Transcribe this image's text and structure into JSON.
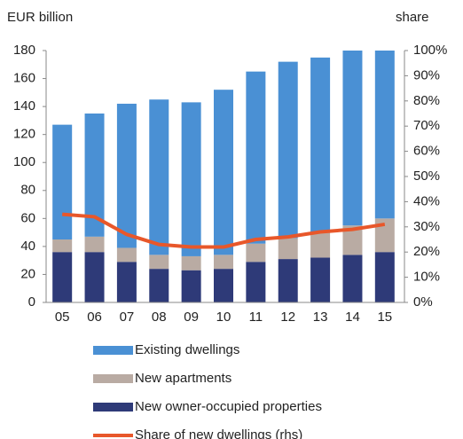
{
  "chart_data": {
    "type": "bar",
    "stacked": true,
    "ylabel": "EUR billion",
    "y2label": "share",
    "categories": [
      "05",
      "06",
      "07",
      "08",
      "09",
      "10",
      "11",
      "12",
      "13",
      "14",
      "15"
    ],
    "series": [
      {
        "name": "Existing dwellings",
        "color": "#4a90d4",
        "values": [
          82,
          88,
          103,
          111,
          110,
          118,
          123,
          126,
          125,
          125,
          120
        ]
      },
      {
        "name": "New apartments",
        "color": "#b9aba3",
        "values": [
          9,
          11,
          10,
          10,
          10,
          10,
          13,
          15,
          18,
          21,
          24
        ]
      },
      {
        "name": "New owner-occupied properties",
        "color": "#2e3a78",
        "values": [
          36,
          36,
          29,
          24,
          23,
          24,
          29,
          31,
          32,
          34,
          36
        ]
      },
      {
        "name": "Share of new dwellings (rhs)",
        "type": "line",
        "axis": "y2",
        "color": "#e8572a",
        "values": [
          35,
          34,
          27,
          23,
          22,
          22,
          25,
          26,
          28,
          29,
          31
        ]
      }
    ],
    "ylim": [
      0,
      180
    ],
    "yticks": [
      0,
      20,
      40,
      60,
      80,
      100,
      120,
      140,
      160,
      180
    ],
    "y2lim": [
      0,
      100
    ],
    "y2ticks": [
      {
        "value": 0,
        "label": "0%"
      },
      {
        "value": 10,
        "label": "10%"
      },
      {
        "value": 20,
        "label": "20%"
      },
      {
        "value": 30,
        "label": "30%"
      },
      {
        "value": 40,
        "label": "40%"
      },
      {
        "value": 50,
        "label": "50%"
      },
      {
        "value": 60,
        "label": "60%"
      },
      {
        "value": 70,
        "label": "70%"
      },
      {
        "value": 80,
        "label": "80%"
      },
      {
        "value": 90,
        "label": "90%"
      },
      {
        "value": 100,
        "label": "100%"
      }
    ]
  }
}
